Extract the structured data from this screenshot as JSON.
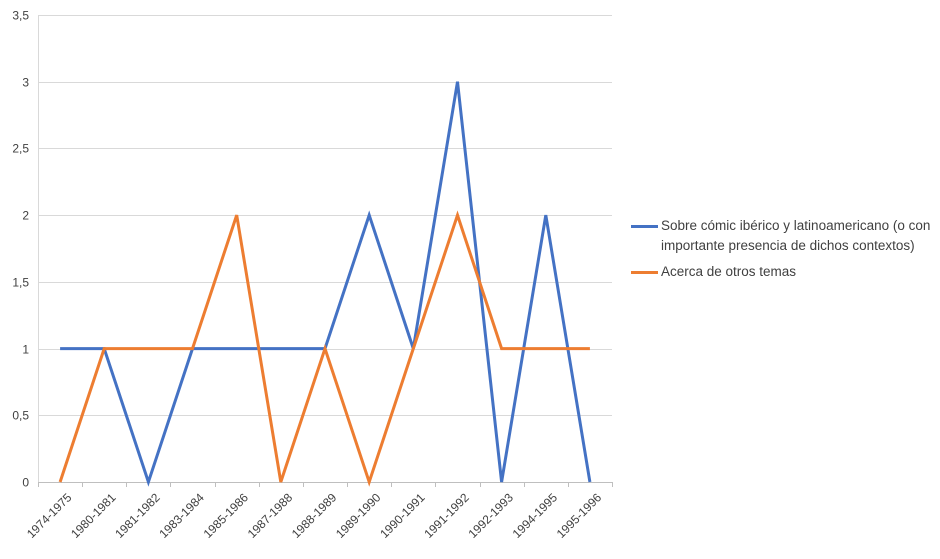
{
  "chart_data": {
    "type": "line",
    "categories": [
      "1974-1975",
      "1980-1981",
      "1981-1982",
      "1983-1984",
      "1985-1986",
      "1987-1988",
      "1988-1989",
      "1989-1990",
      "1990-1991",
      "1991-1992",
      "1992-1993",
      "1994-1995",
      "1995-1996"
    ],
    "series": [
      {
        "name": "Sobre cómic ibérico y latinoamericano (o con importante presencia de dichos contextos)",
        "color": "#4472C4",
        "values": [
          1,
          1,
          0,
          1,
          1,
          1,
          1,
          2,
          1,
          3,
          0,
          2,
          0
        ]
      },
      {
        "name": "Acerca de otros temas",
        "color": "#ED7D31",
        "values": [
          0,
          1,
          1,
          1,
          2,
          0,
          1,
          0,
          1,
          2,
          1,
          1,
          1
        ]
      }
    ],
    "ylim": [
      0,
      3.5
    ],
    "yticks": [
      "0",
      "0,5",
      "1",
      "1,5",
      "2",
      "2,5",
      "3",
      "3,5"
    ],
    "grid": true,
    "legend": "right"
  }
}
